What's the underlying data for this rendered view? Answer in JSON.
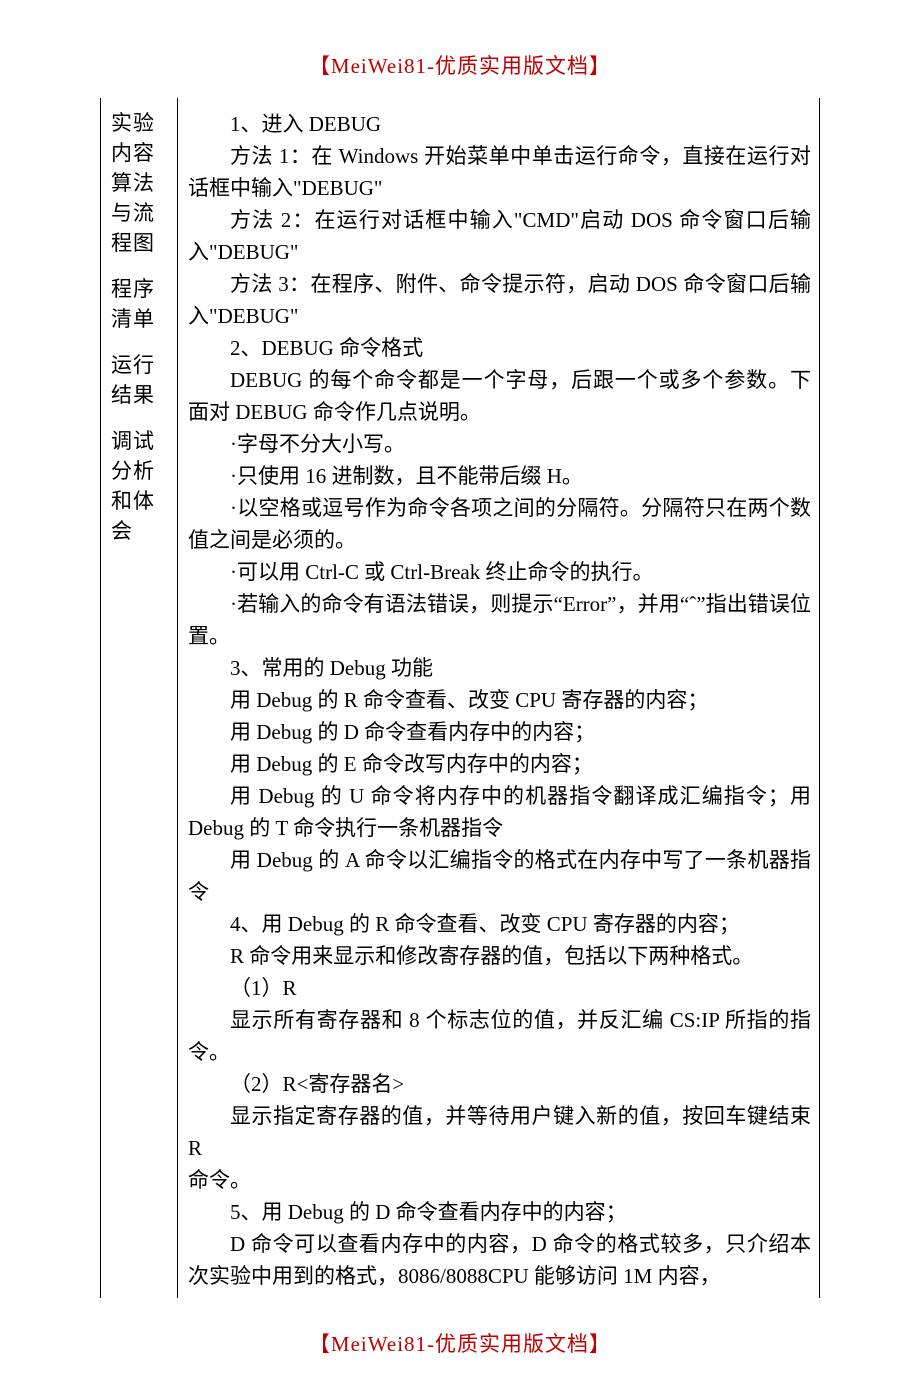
{
  "watermark": "【MeiWei81-优质实用版文档】",
  "sidebar": {
    "block1": {
      "l1": "实验",
      "l2": "内容",
      "l3": "算法",
      "l4": "与流",
      "l5": "程图"
    },
    "block2": {
      "l1": "程序",
      "l2": "清单"
    },
    "block3": {
      "l1": "运行",
      "l2": "结果"
    },
    "block4": {
      "l1": "调试",
      "l2": "分析",
      "l3": "和体",
      "l4": "会"
    }
  },
  "body": {
    "p1": "1、进入 DEBUG",
    "p2": "方法 1：在 Windows 开始菜单中单击运行命令，直接在运行对话框中输入\"DEBUG\"",
    "p3": "方法 2：在运行对话框中输入\"CMD\"启动 DOS 命令窗口后输入\"DEBUG\"",
    "p4": "方法 3：在程序、附件、命令提示符，启动 DOS 命令窗口后输入\"DEBUG\"",
    "p5": "2、DEBUG 命令格式",
    "p6": "DEBUG 的每个命令都是一个字母，后跟一个或多个参数。下面对 DEBUG 命令作几点说明。",
    "p7": "·字母不分大小写。",
    "p8": "·只使用 16 进制数，且不能带后缀 H。",
    "p9": "·以空格或逗号作为命令各项之间的分隔符。分隔符只在两个数值之间是必须的。",
    "p10": "·可以用 Ctrl-C 或 Ctrl-Break 终止命令的执行。",
    "p11": "·若输入的命令有语法错误，则提示“Error”，并用“ˆ”指出错误位置。",
    "p12": "3、常用的 Debug 功能",
    "p13": "用 Debug 的 R 命令查看、改变 CPU 寄存器的内容；",
    "p14": "用 Debug 的 D 命令查看内存中的内容；",
    "p15": "用 Debug 的 E 命令改写内存中的内容；",
    "p16": "用 Debug 的 U 命令将内存中的机器指令翻译成汇编指令；用 Debug 的 T 命令执行一条机器指令",
    "p17": "用 Debug 的 A 命令以汇编指令的格式在内存中写了一条机器指令",
    "p18": "4、用 Debug 的 R 命令查看、改变 CPU 寄存器的内容；",
    "p19": "R 命令用来显示和修改寄存器的值，包括以下两种格式。",
    "p20": "（1）R",
    "p21": "显示所有寄存器和 8 个标志位的值，并反汇编 CS:IP 所指的指令。",
    "p22": "（2）R<寄存器名>",
    "p23": "显示指定寄存器的值，并等待用户键入新的值，按回车键结束 R",
    "p24": "命令。",
    "p25": "5、用 Debug 的 D 命令查看内存中的内容；",
    "p26": "D 命令可以查看内存中的内容，D 命令的格式较多，只介绍本次实验中用到的格式，8086/8088CPU 能够访问 1M 内容，"
  }
}
